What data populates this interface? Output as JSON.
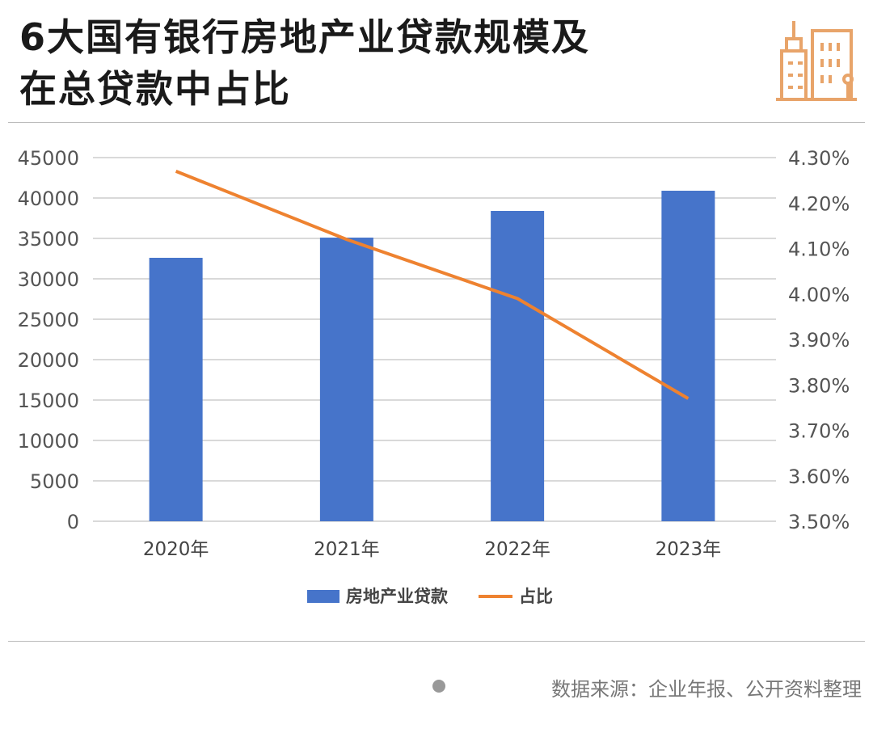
{
  "header": {
    "title_line1": "6大国有银行房地产业贷款规模及",
    "title_line2": "在总贷款中占比",
    "icon": "city-buildings-icon"
  },
  "footer": {
    "source": "数据来源：企业年报、公开资料整理"
  },
  "colors": {
    "bar": "#4674CA",
    "line": "#EE8230",
    "accent": "#E8A46A"
  },
  "chart_data": {
    "type": "bar",
    "title": "6大国有银行房地产业贷款规模及在总贷款中占比",
    "categories": [
      "2020年",
      "2021年",
      "2022年",
      "2023年"
    ],
    "series": [
      {
        "name": "房地产业贷款",
        "type": "bar",
        "axis": "left",
        "values": [
          32600,
          35100,
          38400,
          40900
        ]
      },
      {
        "name": "占比",
        "type": "line",
        "axis": "right",
        "values": [
          4.27,
          4.12,
          3.99,
          3.77
        ]
      }
    ],
    "left_axis": {
      "ylim": [
        0,
        45000
      ],
      "ticks": [
        "0",
        "5000",
        "10000",
        "15000",
        "20000",
        "25000",
        "30000",
        "35000",
        "40000",
        "45000"
      ]
    },
    "right_axis": {
      "ylim": [
        3.5,
        4.3
      ],
      "ticks": [
        "3.50%",
        "3.60%",
        "3.70%",
        "3.80%",
        "3.90%",
        "4.00%",
        "4.10%",
        "4.20%",
        "4.30%"
      ]
    },
    "grid": true,
    "legend": "bottom"
  }
}
